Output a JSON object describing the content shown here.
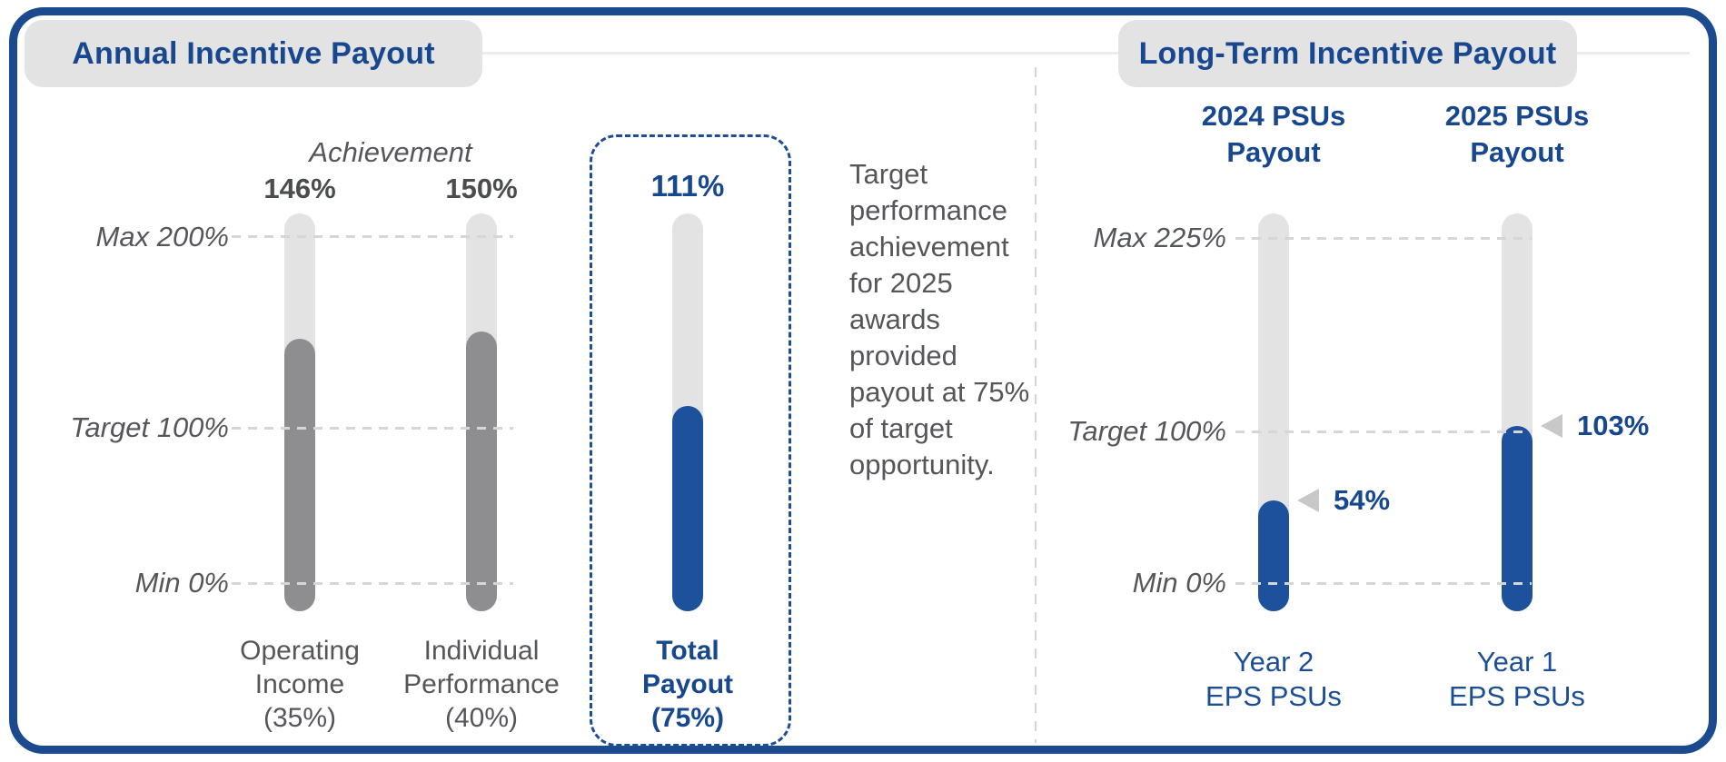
{
  "colors": {
    "brand_navy": "#17478f",
    "border_navy": "#1b4b8e",
    "bar_blue": "#1d519b",
    "bar_gray": "#8e8e91",
    "track_gray": "#e3e3e4",
    "header_bg": "#e3e3e3",
    "text_gray": "#55565a",
    "dash_gray": "#d6d6d6",
    "marker_gray": "#c8c8c8"
  },
  "left_section": {
    "header": "Annual Incentive Payout",
    "achievement_label": "Achievement",
    "axis": {
      "max": "Max 200%",
      "target": "Target 100%",
      "min": "Min 0%"
    },
    "bars": [
      {
        "value": 146,
        "value_label": "146%",
        "name": "Operating\nIncome\n(35%)"
      },
      {
        "value": 150,
        "value_label": "150%",
        "name": "Individual\nPerformance\n(40%)"
      },
      {
        "value": 111,
        "value_label": "111%",
        "name": "Total\nPayout\n(75%)"
      }
    ],
    "note": "Target\nperformance\nachievement\nfor 2025\nawards\nprovided\npayout at 75%\nof target\nopportunity."
  },
  "right_section": {
    "header": "Long-Term Incentive Payout",
    "axis": {
      "max": "Max 225%",
      "target": "Target 100%",
      "min": "Min 0%"
    },
    "columns": [
      {
        "title": "2024 PSUs\nPayout",
        "value": 54,
        "value_label": "54%",
        "name": "Year 2\nEPS PSUs"
      },
      {
        "title": "2025 PSUs\nPayout",
        "value": 103,
        "value_label": "103%",
        "name": "Year 1\nEPS PSUs"
      }
    ]
  },
  "chart_data": [
    {
      "type": "bar",
      "title": "Annual Incentive Payout",
      "subtitle": "Achievement",
      "categories": [
        "Operating Income (35%)",
        "Individual Performance (40%)",
        "Total Payout (75%)"
      ],
      "values": [
        146,
        150,
        111
      ],
      "value_labels": [
        "146%",
        "150%",
        "111%"
      ],
      "xlabel": "",
      "ylabel": "",
      "ylim": [
        0,
        200
      ],
      "yticks": [
        {
          "label": "Max 200%",
          "value": 200
        },
        {
          "label": "Target 100%",
          "value": 100
        },
        {
          "label": "Min 0%",
          "value": 0
        }
      ],
      "grid": "dashed horizontal lines at ticks",
      "legend_position": "none",
      "annotation": "Target performance achievement for 2025 awards provided payout at 75% of target opportunity.",
      "highlight": "Total Payout (75%) bar is blue, value 111%, enclosed in a blue dashed rounded box; other bars are gray"
    },
    {
      "type": "bar",
      "title": "Long-Term Incentive Payout",
      "categories": [
        "Year 2 EPS PSUs",
        "Year 1 EPS PSUs"
      ],
      "series": [
        {
          "name": "2024 PSUs Payout",
          "category": "Year 2 EPS PSUs",
          "value": 54
        },
        {
          "name": "2025 PSUs Payout",
          "category": "Year 1 EPS PSUs",
          "value": 103
        }
      ],
      "value_labels": [
        "54%",
        "103%"
      ],
      "xlabel": "",
      "ylabel": "",
      "ylim": [
        0,
        225
      ],
      "yticks": [
        {
          "label": "Max 225%",
          "value": 225
        },
        {
          "label": "Target 100%",
          "value": 100
        },
        {
          "label": "Min 0%",
          "value": 0
        }
      ],
      "grid": "dashed horizontal lines at ticks",
      "legend_position": "none",
      "annotation": "Gray left-pointing triangle markers with blue bold value labels at each bar's fill level"
    }
  ]
}
